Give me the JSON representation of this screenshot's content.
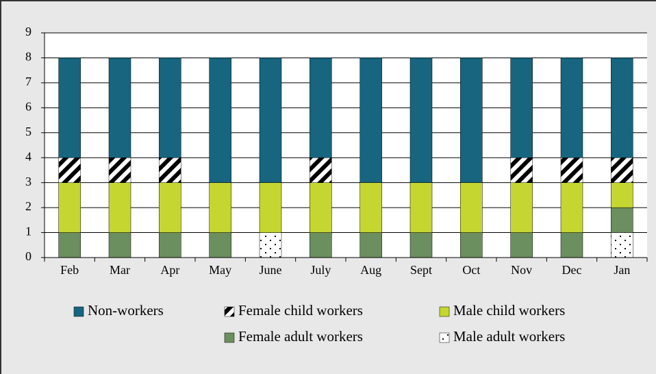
{
  "chart_data": {
    "type": "stacked_bar",
    "categories": [
      "Feb",
      "Mar",
      "Apr",
      "May",
      "June",
      "July",
      "Aug",
      "Sept",
      "Oct",
      "Nov",
      "Dec",
      "Jan"
    ],
    "series": [
      {
        "name": "Non-workers",
        "color": "#17657f",
        "values": [
          4,
          4,
          4,
          5,
          5,
          4,
          5,
          5,
          5,
          4,
          4,
          4
        ]
      },
      {
        "name": "Female child workers",
        "color": "#000000",
        "pattern": "hatch",
        "values": [
          1,
          1,
          1,
          0,
          0,
          1,
          0,
          0,
          0,
          1,
          1,
          1
        ]
      },
      {
        "name": "Male child workers",
        "color": "#c5d630",
        "values": [
          2,
          2,
          2,
          2,
          2,
          2,
          2,
          2,
          2,
          2,
          2,
          1
        ]
      },
      {
        "name": "Female adult workers",
        "color": "#6b8f5e",
        "values": [
          1,
          1,
          1,
          1,
          0,
          1,
          1,
          1,
          1,
          1,
          1,
          1
        ]
      },
      {
        "name": "Male adult workers",
        "color": "#000000",
        "pattern": "dots",
        "values": [
          0,
          0,
          0,
          0,
          1,
          0,
          0,
          0,
          0,
          0,
          0,
          1
        ]
      }
    ],
    "ylim": [
      0,
      9
    ],
    "yticks": [
      0,
      1,
      2,
      3,
      4,
      5,
      6,
      7,
      8,
      9
    ],
    "grid": true,
    "legend": "bottom"
  }
}
